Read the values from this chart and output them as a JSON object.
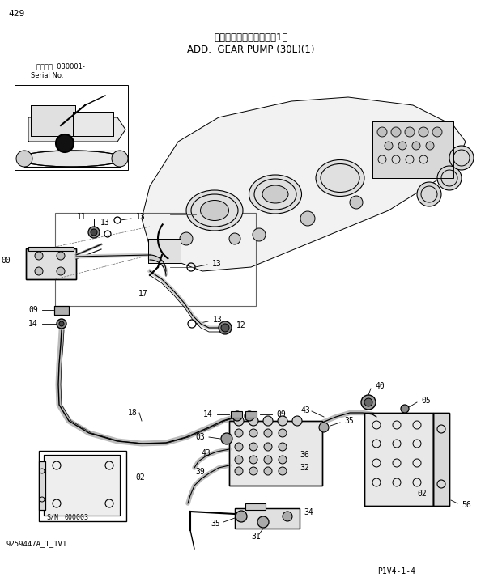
{
  "page_number": "429",
  "title_jp": "追加ポンプ（３０Ｌ）（1）",
  "title_en": "ADD.  GEAR PUMP (30L)(1)",
  "serial_label": "適用号機  030001-",
  "serial_label2": "Serial No.",
  "doc_number": "9259447A_1_1V1",
  "page_ref": "P1V4-1-4",
  "bg_color": "#ffffff",
  "line_color": "#000000"
}
